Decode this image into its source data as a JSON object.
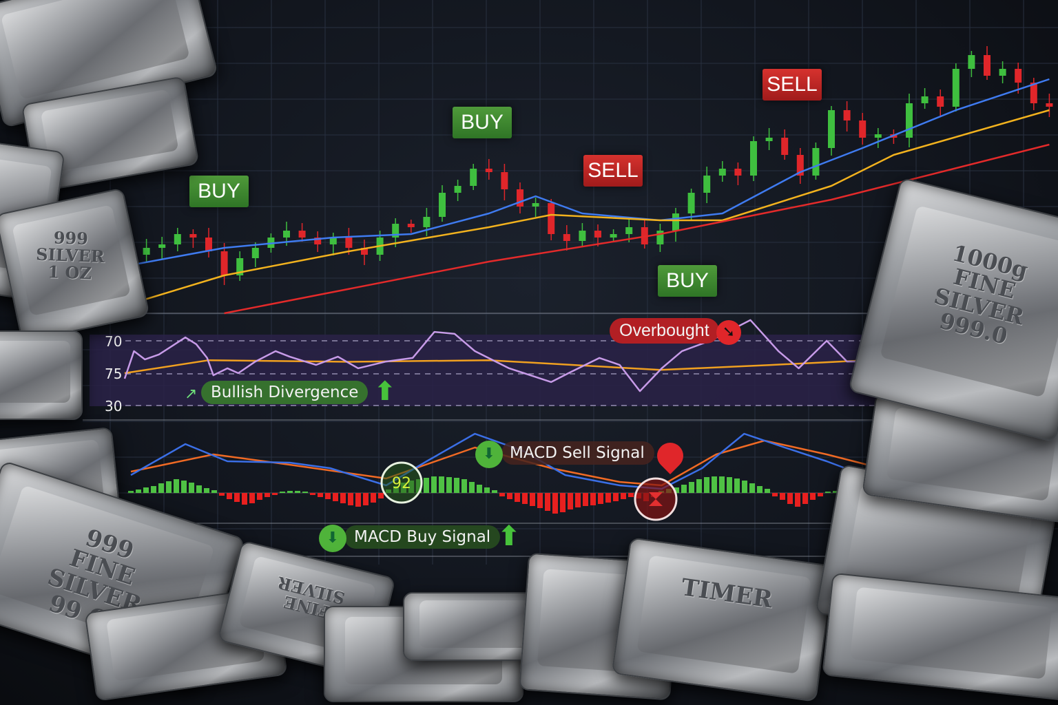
{
  "chart_data": {
    "type": "candlestick",
    "price_panel": {
      "closes": [
        130,
        140,
        145,
        160,
        155,
        135,
        100,
        125,
        140,
        155,
        165,
        155,
        145,
        155,
        140,
        130,
        155,
        175,
        170,
        185,
        220,
        230,
        255,
        250,
        225,
        200,
        205,
        160,
        150,
        165,
        155,
        160,
        170,
        145,
        165,
        190,
        220,
        245,
        255,
        245,
        295,
        300,
        275,
        245,
        285,
        340,
        325,
        300,
        305,
        300,
        350,
        360,
        345,
        400,
        420,
        390,
        400,
        380,
        350,
        345
      ],
      "moving_averages": [
        {
          "color": "#3f7bf0",
          "points": [
            [
              0,
              115
            ],
            [
              6,
              140
            ],
            [
              13,
              155
            ],
            [
              18,
              160
            ],
            [
              23,
              190
            ],
            [
              26,
              215
            ],
            [
              29,
              190
            ],
            [
              34,
              180
            ],
            [
              38,
              190
            ],
            [
              43,
              250
            ],
            [
              47,
              285
            ],
            [
              53,
              340
            ],
            [
              59,
              385
            ]
          ]
        },
        {
          "color": "#f2b21e",
          "points": [
            [
              -1.3,
              50
            ],
            [
              6,
              100
            ],
            [
              14,
              135
            ],
            [
              23,
              170
            ],
            [
              27,
              188
            ],
            [
              34,
              180
            ],
            [
              38,
              180
            ],
            [
              45,
              230
            ],
            [
              49,
              275
            ],
            [
              59,
              340
            ]
          ]
        },
        {
          "color": "#e32a2a",
          "points": [
            [
              6,
              45
            ],
            [
              23,
              120
            ],
            [
              34,
              160
            ],
            [
              45,
              210
            ],
            [
              59,
              290
            ]
          ]
        }
      ],
      "signals": [
        {
          "label": "BUY",
          "type": "buy"
        },
        {
          "label": "BUY",
          "type": "buy"
        },
        {
          "label": "SELL",
          "type": "sell"
        },
        {
          "label": "BUY",
          "type": "buy"
        },
        {
          "label": "SELL",
          "type": "sell"
        }
      ]
    },
    "rsi_panel": {
      "tick_labels": [
        "70",
        "75",
        "30"
      ],
      "line": [
        [
          -0.4,
          46.6
        ],
        [
          0.2,
          63.6
        ],
        [
          0.9,
          58.5
        ],
        [
          1.8,
          61.5
        ],
        [
          3.5,
          72.1
        ],
        [
          4.2,
          67.9
        ],
        [
          4.9,
          59.4
        ],
        [
          5.3,
          48.7
        ],
        [
          6.2,
          53
        ],
        [
          6.9,
          50
        ],
        [
          8,
          57.2
        ],
        [
          9.3,
          63.6
        ],
        [
          10.2,
          60.2
        ],
        [
          11.9,
          55.1
        ],
        [
          13.3,
          60.2
        ],
        [
          14.6,
          53
        ],
        [
          16.4,
          57.2
        ],
        [
          18.1,
          59.4
        ],
        [
          19.5,
          75.5
        ],
        [
          20.8,
          74.3
        ],
        [
          22.1,
          63.6
        ],
        [
          24.3,
          53
        ],
        [
          27,
          44.5
        ],
        [
          28.3,
          50.9
        ],
        [
          30.1,
          59.4
        ],
        [
          31.4,
          55.1
        ],
        [
          32.7,
          38.9
        ],
        [
          34.1,
          53
        ],
        [
          35.4,
          63.6
        ],
        [
          37.2,
          70
        ],
        [
          39.8,
          82.8
        ],
        [
          41.6,
          63.6
        ],
        [
          42.9,
          53
        ],
        [
          44.7,
          70
        ],
        [
          46,
          57.2
        ],
        [
          47.3,
          57.2
        ]
      ],
      "signal_line": [
        [
          -0.4,
          50
        ],
        [
          5,
          58
        ],
        [
          14,
          57
        ],
        [
          23,
          58
        ],
        [
          34,
          52
        ],
        [
          41,
          55
        ],
        [
          47.3,
          58
        ]
      ],
      "annotations": {
        "overbought": "Overbought",
        "bullish_divergence": "Bullish Divergence"
      }
    },
    "macd_panel": {
      "macd_line": [
        [
          0,
          2.6
        ],
        [
          3.5,
          7.1
        ],
        [
          6.2,
          4.6
        ],
        [
          10.2,
          4.4
        ],
        [
          12.8,
          3.6
        ],
        [
          16.4,
          1.1
        ],
        [
          19,
          4.6
        ],
        [
          22.1,
          8.6
        ],
        [
          25.2,
          6.1
        ],
        [
          27.9,
          2.6
        ],
        [
          31.4,
          1.1
        ],
        [
          34.1,
          0.6
        ],
        [
          36.7,
          3.6
        ],
        [
          39.4,
          8.6
        ],
        [
          42,
          6.6
        ],
        [
          44.7,
          4.6
        ],
        [
          47.3,
          2.4
        ]
      ],
      "signal_line": [
        [
          0,
          3.1
        ],
        [
          5.3,
          5.6
        ],
        [
          10.2,
          4.1
        ],
        [
          16.4,
          2.1
        ],
        [
          22.1,
          6.6
        ],
        [
          27,
          3.6
        ],
        [
          31.4,
          1.6
        ],
        [
          34.1,
          1.1
        ],
        [
          37.6,
          5.6
        ],
        [
          40.7,
          7.6
        ],
        [
          44.7,
          5.6
        ],
        [
          47.3,
          4.1
        ]
      ],
      "histogram": [
        0.3,
        0.5,
        0.8,
        1.0,
        1.4,
        1.7,
        2.0,
        1.8,
        1.5,
        1.1,
        0.7,
        0.4,
        -0.4,
        -0.9,
        -1.3,
        -1.7,
        -1.5,
        -1.0,
        -0.6,
        -0.3,
        0.2,
        0.3,
        0.3,
        0.2,
        -0.3,
        -0.6,
        -0.9,
        -1.2,
        -1.5,
        -1.8,
        -2.0,
        -1.8,
        -1.4,
        -0.8,
        0.5,
        1.0,
        1.5,
        1.8,
        2.0,
        2.2,
        2.4,
        2.4,
        2.3,
        2.2,
        2.0,
        1.6,
        1.2,
        0.8,
        0.4,
        -0.5,
        -0.9,
        -1.3,
        -1.6,
        -1.9,
        -2.2,
        -2.6,
        -3.0,
        -2.8,
        -2.4,
        -2.1,
        -1.9,
        -1.8,
        -1.6,
        -1.4,
        -1.2,
        -0.9,
        -0.6,
        -0.8,
        -1.2,
        -0.6,
        0.3,
        0.6,
        0.8,
        1.2,
        1.6,
        2.0,
        2.3,
        2.4,
        2.4,
        2.3,
        2.1,
        1.8,
        1.4,
        1.0,
        0.6,
        -0.5,
        -1.0,
        -1.6,
        -2.0,
        -1.6,
        -1.0,
        -0.5,
        0.2,
        0.3,
        0.4,
        0.3
      ],
      "cross_values": {
        "buy_cross": "92"
      },
      "annotations": {
        "sell": "MACD Sell Signal",
        "buy": "MACD Buy Signal"
      }
    },
    "colors": {
      "up": "#3fbf3f",
      "down": "#e0262a",
      "rsi": "#c79be8",
      "rsi_band": "#2a2248",
      "macd": "#3b6fe6",
      "macd_signal": "#f06a24"
    }
  },
  "bar_engravings": [
    "999\nSILVER\n1 OZ",
    "1000g\nFINE\nSILVER\n999.0",
    "999\nFINE\nSILVER\n99 OZ",
    "FINE\nSILVER",
    "TIMER"
  ]
}
